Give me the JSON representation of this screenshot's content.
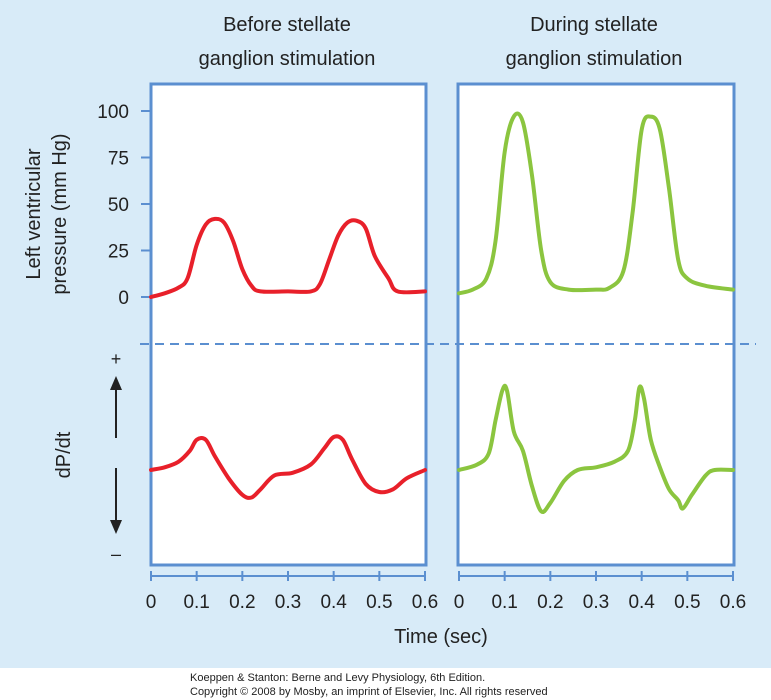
{
  "chart_data": {
    "type": "line",
    "panel_titles": [
      [
        "Before stellate",
        "ganglion stimulation"
      ],
      [
        "During stellate",
        "ganglion stimulation"
      ]
    ],
    "ylabel_top": [
      "Left ventricular",
      "pressure (mm Hg)"
    ],
    "ylabel_bottom": "dP/dt",
    "xlabel": "Time (sec)",
    "x_ticks": [
      "0",
      "0.1",
      "0.2",
      "0.3",
      "0.4",
      "0.5",
      "0.6"
    ],
    "y_ticks": [
      "100",
      "75",
      "50",
      "25",
      "0"
    ],
    "plus_sign": "+",
    "minus_sign": "–",
    "xlim": [
      0,
      0.6
    ],
    "ylim_pressure": [
      0,
      100
    ],
    "colors": {
      "background": "#d8ebf8",
      "panel_border": "#5b8fd0",
      "divider": "#5b8fd0",
      "before": "#e8202a",
      "during": "#8bc53f"
    },
    "series": [
      {
        "panel": "before",
        "kind": "pressure",
        "points": [
          [
            0,
            0
          ],
          [
            0.03,
            2
          ],
          [
            0.06,
            5
          ],
          [
            0.08,
            10
          ],
          [
            0.1,
            28
          ],
          [
            0.12,
            39
          ],
          [
            0.14,
            42
          ],
          [
            0.16,
            40
          ],
          [
            0.18,
            30
          ],
          [
            0.2,
            15
          ],
          [
            0.22,
            6
          ],
          [
            0.24,
            3
          ],
          [
            0.3,
            3
          ],
          [
            0.35,
            3
          ],
          [
            0.37,
            7
          ],
          [
            0.39,
            20
          ],
          [
            0.41,
            33
          ],
          [
            0.43,
            40
          ],
          [
            0.45,
            41
          ],
          [
            0.47,
            37
          ],
          [
            0.49,
            22
          ],
          [
            0.52,
            10
          ],
          [
            0.54,
            3
          ],
          [
            0.6,
            3
          ]
        ]
      },
      {
        "panel": "before",
        "kind": "dpdt",
        "points": [
          [
            0,
            0
          ],
          [
            0.03,
            0.05
          ],
          [
            0.06,
            0.15
          ],
          [
            0.085,
            0.35
          ],
          [
            0.1,
            0.55
          ],
          [
            0.12,
            0.55
          ],
          [
            0.14,
            0.25
          ],
          [
            0.17,
            -0.15
          ],
          [
            0.2,
            -0.45
          ],
          [
            0.22,
            -0.5
          ],
          [
            0.24,
            -0.35
          ],
          [
            0.27,
            -0.1
          ],
          [
            0.31,
            -0.05
          ],
          [
            0.35,
            0.1
          ],
          [
            0.38,
            0.4
          ],
          [
            0.4,
            0.6
          ],
          [
            0.42,
            0.55
          ],
          [
            0.44,
            0.2
          ],
          [
            0.47,
            -0.25
          ],
          [
            0.5,
            -0.4
          ],
          [
            0.53,
            -0.35
          ],
          [
            0.56,
            -0.15
          ],
          [
            0.6,
            0
          ]
        ]
      },
      {
        "panel": "during",
        "kind": "pressure",
        "points": [
          [
            0,
            2
          ],
          [
            0.03,
            4
          ],
          [
            0.06,
            10
          ],
          [
            0.08,
            30
          ],
          [
            0.1,
            78
          ],
          [
            0.12,
            97
          ],
          [
            0.14,
            94
          ],
          [
            0.16,
            65
          ],
          [
            0.18,
            25
          ],
          [
            0.2,
            8
          ],
          [
            0.24,
            4
          ],
          [
            0.3,
            4
          ],
          [
            0.33,
            5
          ],
          [
            0.36,
            14
          ],
          [
            0.38,
            45
          ],
          [
            0.4,
            90
          ],
          [
            0.42,
            97
          ],
          [
            0.44,
            90
          ],
          [
            0.46,
            58
          ],
          [
            0.48,
            20
          ],
          [
            0.5,
            10
          ],
          [
            0.54,
            6
          ],
          [
            0.6,
            4
          ]
        ]
      },
      {
        "panel": "during",
        "kind": "dpdt",
        "points": [
          [
            0,
            0
          ],
          [
            0.04,
            0.1
          ],
          [
            0.065,
            0.3
          ],
          [
            0.08,
            0.9
          ],
          [
            0.095,
            1.45
          ],
          [
            0.105,
            1.45
          ],
          [
            0.12,
            0.7
          ],
          [
            0.14,
            0.35
          ],
          [
            0.16,
            -0.3
          ],
          [
            0.18,
            -0.75
          ],
          [
            0.2,
            -0.6
          ],
          [
            0.23,
            -0.2
          ],
          [
            0.26,
            0
          ],
          [
            0.3,
            0.05
          ],
          [
            0.34,
            0.15
          ],
          [
            0.37,
            0.35
          ],
          [
            0.385,
            0.9
          ],
          [
            0.395,
            1.5
          ],
          [
            0.405,
            1.3
          ],
          [
            0.42,
            0.55
          ],
          [
            0.44,
            0.05
          ],
          [
            0.46,
            -0.35
          ],
          [
            0.48,
            -0.55
          ],
          [
            0.49,
            -0.7
          ],
          [
            0.51,
            -0.45
          ],
          [
            0.54,
            -0.1
          ],
          [
            0.56,
            0
          ],
          [
            0.6,
            0
          ]
        ]
      }
    ]
  },
  "credit": {
    "line1": "Koeppen & Stanton: Berne and Levy Physiology, 6th Edition.",
    "line2": "Copyright © 2008 by Mosby, an imprint of Elsevier, Inc. All rights reserved"
  }
}
